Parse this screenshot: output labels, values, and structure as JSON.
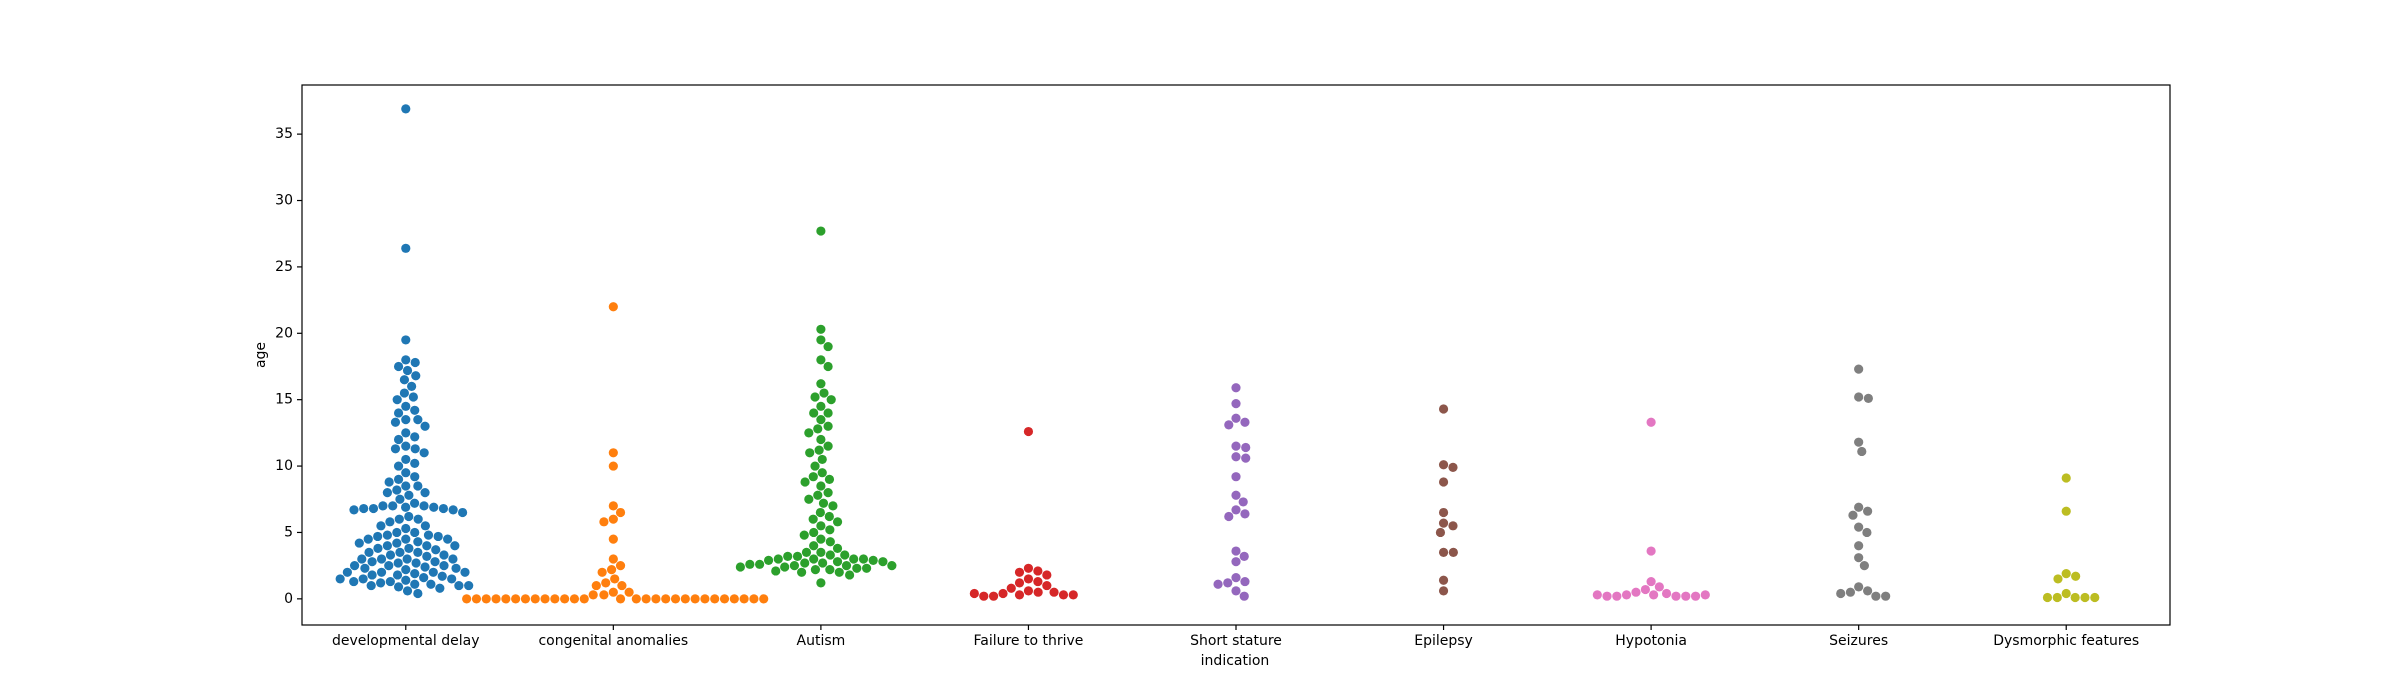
{
  "chart_data": {
    "type": "swarm",
    "xlabel": "indication",
    "ylabel": "age",
    "categories": [
      "developmental delay",
      "congenital anomalies",
      "Autism",
      "Failure to thrive",
      "Short stature",
      "Epilepsy",
      "Hypotonia",
      "Seizures",
      "Dysmorphic features"
    ],
    "colors": [
      "#1f77b4",
      "#ff7f0e",
      "#2ca02c",
      "#d62728",
      "#9467bd",
      "#8c564b",
      "#e377c2",
      "#7f7f7f",
      "#bcbd22"
    ],
    "values": [
      [
        36.9,
        26.4,
        19.5,
        18,
        17.8,
        17.5,
        17.2,
        16.8,
        16.5,
        16,
        15.5,
        15.2,
        15,
        14.5,
        14.2,
        14,
        13.5,
        13.5,
        13.3,
        13,
        12.5,
        12.2,
        12,
        11.5,
        11.3,
        11.3,
        11,
        10.5,
        10.2,
        10,
        9.5,
        9.2,
        9,
        8.8,
        8.5,
        8.5,
        8.2,
        8,
        8,
        7.8,
        7.5,
        7.2,
        7,
        7,
        7,
        6.9,
        6.9,
        6.8,
        6.8,
        6.8,
        6.7,
        6.7,
        6.5,
        6.2,
        6,
        6,
        5.8,
        5.5,
        5.5,
        5.3,
        5,
        5,
        4.8,
        4.8,
        4.7,
        4.7,
        4.5,
        4.5,
        4.5,
        4.3,
        4.2,
        4.2,
        4,
        4,
        4,
        3.8,
        3.8,
        3.7,
        3.5,
        3.5,
        3.5,
        3.3,
        3.3,
        3.2,
        3,
        3,
        3,
        3,
        2.8,
        2.8,
        2.7,
        2.7,
        2.5,
        2.5,
        2.5,
        2.4,
        2.3,
        2.3,
        2.2,
        2,
        2,
        2,
        2,
        1.9,
        1.8,
        1.8,
        1.7,
        1.6,
        1.5,
        1.5,
        1.5,
        1.4,
        1.3,
        1.3,
        1.2,
        1.1,
        1.1,
        1,
        1,
        1,
        0.9,
        0.8,
        0.6,
        0.4
      ],
      [
        22,
        11,
        10,
        7,
        6.5,
        6,
        5.8,
        4.5,
        3,
        2.5,
        2.2,
        2,
        1.5,
        1.2,
        1,
        1,
        0.5,
        0.5,
        0.3,
        0.3,
        0,
        0,
        0,
        0,
        0,
        0,
        0,
        0,
        0,
        0,
        0,
        0,
        0,
        0,
        0,
        0,
        0,
        0,
        0,
        0,
        0,
        0,
        0,
        0,
        0,
        0,
        0,
        0
      ],
      [
        27.7,
        20.3,
        19.5,
        19,
        18,
        17.5,
        16.2,
        15.5,
        15.2,
        15,
        14.5,
        14,
        14,
        13.5,
        13,
        12.8,
        12.5,
        12,
        11.5,
        11.2,
        11,
        10.5,
        10,
        9.5,
        9.2,
        9,
        8.8,
        8.5,
        8,
        7.8,
        7.5,
        7.2,
        7,
        6.5,
        6.2,
        6,
        5.8,
        5.5,
        5.2,
        5,
        4.8,
        4.5,
        4.3,
        4,
        3.8,
        3.5,
        3.5,
        3.3,
        3.3,
        3.2,
        3.2,
        3,
        3,
        3,
        3,
        2.9,
        2.9,
        2.8,
        2.8,
        2.7,
        2.7,
        2.6,
        2.6,
        2.5,
        2.5,
        2.5,
        2.4,
        2.4,
        2.3,
        2.3,
        2.2,
        2.2,
        2.1,
        2,
        2,
        1.8,
        1.2
      ],
      [
        12.6,
        2.3,
        2.1,
        2,
        1.8,
        1.5,
        1.3,
        1.2,
        1,
        0.8,
        0.6,
        0.5,
        0.5,
        0.4,
        0.3,
        0.3,
        0.2,
        0.2,
        0.3,
        0.4
      ],
      [
        15.9,
        14.7,
        13.6,
        13.3,
        13.1,
        11.5,
        11.4,
        10.7,
        10.6,
        9.2,
        7.8,
        7.3,
        6.7,
        6.4,
        6.2,
        3.6,
        3.2,
        2.8,
        1.6,
        1.3,
        1.2,
        1.1,
        0.6,
        0.2
      ],
      [
        14.3,
        10.1,
        9.9,
        8.8,
        6.5,
        5.7,
        5.5,
        5,
        3.5,
        3.5,
        1.4,
        0.6
      ],
      [
        13.3,
        3.6,
        1.3,
        0.9,
        0.7,
        0.5,
        0.4,
        0.3,
        0.3,
        0.2,
        0.2,
        0.2,
        0.2,
        0.2,
        0.3,
        0.3
      ],
      [
        17.3,
        15.2,
        15.1,
        11.8,
        11.1,
        6.9,
        6.6,
        6.3,
        5.4,
        5,
        4,
        3.1,
        2.5,
        0.9,
        0.6,
        0.5,
        0.4,
        0.2,
        0.2
      ],
      [
        9.1,
        6.6,
        1.9,
        1.7,
        1.5,
        0.4,
        0.1,
        0.1,
        0.1,
        0.1,
        0.1
      ]
    ],
    "ylim": [
      -1.97,
      38.7
    ],
    "yticks": [
      0,
      5,
      10,
      15,
      20,
      25,
      30,
      35
    ]
  }
}
